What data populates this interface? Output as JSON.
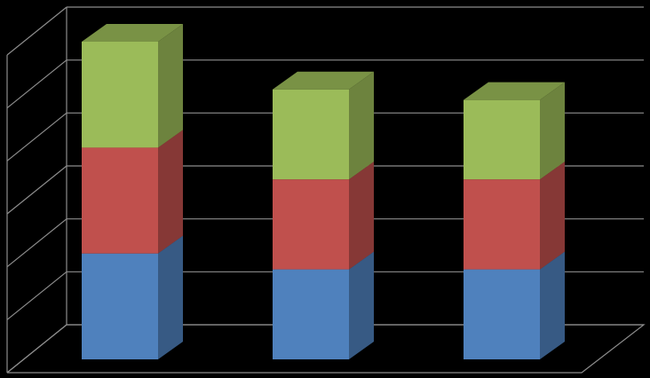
{
  "chart_data": {
    "type": "bar",
    "stacked": true,
    "categories": [
      null,
      null,
      null
    ],
    "series": [
      {
        "color": "#4f81bd",
        "values": [
          2,
          1.7,
          1.7
        ]
      },
      {
        "color": "#c0504d",
        "values": [
          2,
          1.7,
          1.7
        ]
      },
      {
        "color": "#9bbb59",
        "values": [
          2,
          1.7,
          1.5
        ]
      }
    ],
    "ylim": [
      0,
      6
    ],
    "yticks": [
      0,
      1,
      2,
      3,
      4,
      5,
      6
    ],
    "grid": true
  }
}
